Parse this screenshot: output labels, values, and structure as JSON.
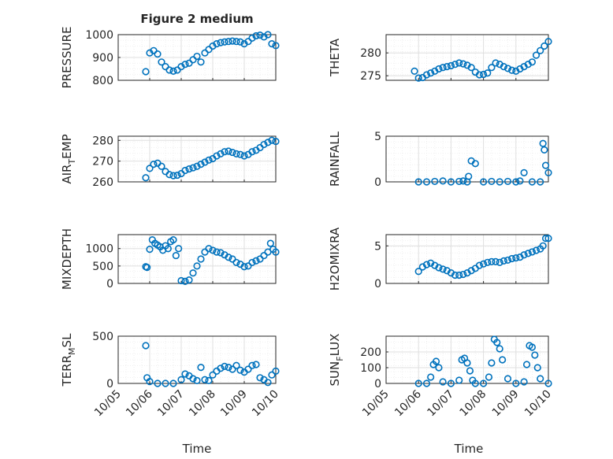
{
  "figure": {
    "title": "Figure 2 medium",
    "xlabel": "Time",
    "marker_color": "#0072BD"
  },
  "chart_data": [
    {
      "type": "scatter",
      "ylabel": "PRESSURE",
      "title": "Figure 2 medium",
      "xlim": [
        "10/05",
        "10/10"
      ],
      "ylim": [
        800,
        1000
      ],
      "yticks": [
        "800",
        "900",
        "1000"
      ],
      "xticks": [
        "10/05",
        "10/06",
        "10/07",
        "10/08",
        "10/09",
        "10/10"
      ],
      "x": [
        "10/05 21:00",
        "10/06 00:00",
        "10/06 03:00",
        "10/06 06:00",
        "10/06 09:00",
        "10/06 12:00",
        "10/06 15:00",
        "10/06 18:00",
        "10/06 21:00",
        "10/07 00:00",
        "10/07 03:00",
        "10/07 06:00",
        "10/07 09:00",
        "10/07 12:00",
        "10/07 15:00",
        "10/07 18:00",
        "10/07 21:00",
        "10/08 00:00",
        "10/08 03:00",
        "10/08 06:00",
        "10/08 09:00",
        "10/08 12:00",
        "10/08 15:00",
        "10/08 18:00",
        "10/08 21:00",
        "10/09 00:00",
        "10/09 03:00",
        "10/09 06:00",
        "10/09 09:00",
        "10/09 12:00",
        "10/09 15:00",
        "10/09 18:00",
        "10/09 21:00",
        "10/10 00:00"
      ],
      "y": [
        838,
        920,
        930,
        915,
        880,
        860,
        845,
        840,
        845,
        860,
        870,
        875,
        890,
        905,
        880,
        920,
        935,
        950,
        960,
        965,
        968,
        970,
        972,
        970,
        968,
        960,
        970,
        985,
        995,
        998,
        990,
        1000,
        960,
        952
      ]
    },
    {
      "type": "scatter",
      "ylabel": "THETA",
      "xlim": [
        "10/05",
        "10/10"
      ],
      "ylim": [
        274,
        284
      ],
      "yticks": [
        "275",
        "280"
      ],
      "x": [
        "10/05 21:00",
        "10/06 00:00",
        "10/06 03:00",
        "10/06 06:00",
        "10/06 09:00",
        "10/06 12:00",
        "10/06 15:00",
        "10/06 18:00",
        "10/06 21:00",
        "10/07 00:00",
        "10/07 03:00",
        "10/07 06:00",
        "10/07 09:00",
        "10/07 12:00",
        "10/07 15:00",
        "10/07 18:00",
        "10/07 21:00",
        "10/08 00:00",
        "10/08 03:00",
        "10/08 06:00",
        "10/08 09:00",
        "10/08 12:00",
        "10/08 15:00",
        "10/08 18:00",
        "10/08 21:00",
        "10/09 00:00",
        "10/09 03:00",
        "10/09 06:00",
        "10/09 09:00",
        "10/09 12:00",
        "10/09 15:00",
        "10/09 18:00",
        "10/09 21:00",
        "10/10 00:00"
      ],
      "y": [
        276,
        274.5,
        274.6,
        275.2,
        275.6,
        276,
        276.5,
        276.8,
        277,
        277.2,
        277.5,
        277.8,
        277.6,
        277.3,
        276.8,
        275.8,
        275.2,
        275.3,
        275.6,
        276.8,
        277.8,
        277.5,
        277,
        276.6,
        276.2,
        276,
        276.5,
        277,
        277.5,
        278,
        279.5,
        280.5,
        281.5,
        282.5
      ]
    },
    {
      "type": "scatter",
      "ylabel": "AIR_TEMP",
      "xlim": [
        "10/05",
        "10/10"
      ],
      "ylim": [
        260,
        282
      ],
      "yticks": [
        "260",
        "270",
        "280"
      ],
      "x": [
        "10/05 21:00",
        "10/06 00:00",
        "10/06 03:00",
        "10/06 06:00",
        "10/06 09:00",
        "10/06 12:00",
        "10/06 15:00",
        "10/06 18:00",
        "10/06 21:00",
        "10/07 00:00",
        "10/07 03:00",
        "10/07 06:00",
        "10/07 09:00",
        "10/07 12:00",
        "10/07 15:00",
        "10/07 18:00",
        "10/07 21:00",
        "10/08 00:00",
        "10/08 03:00",
        "10/08 06:00",
        "10/08 09:00",
        "10/08 12:00",
        "10/08 15:00",
        "10/08 18:00",
        "10/08 21:00",
        "10/09 00:00",
        "10/09 03:00",
        "10/09 06:00",
        "10/09 09:00",
        "10/09 12:00",
        "10/09 15:00",
        "10/09 18:00",
        "10/09 21:00",
        "10/10 00:00"
      ],
      "y": [
        262,
        266.5,
        268.5,
        269,
        267.5,
        265,
        263.5,
        263,
        263.2,
        264,
        265.5,
        266.2,
        266.8,
        267.5,
        268.5,
        269.5,
        270.5,
        271.2,
        272.5,
        273.5,
        274.5,
        274.8,
        274.2,
        273.5,
        273.2,
        272.5,
        273.2,
        274.5,
        275.2,
        276.5,
        278,
        279,
        280,
        279.5
      ]
    },
    {
      "type": "scatter",
      "ylabel": "RAINFALL",
      "xlim": [
        "10/05",
        "10/10"
      ],
      "ylim": [
        0,
        5
      ],
      "yticks": [
        "0",
        "5"
      ],
      "x": [
        "10/06 00:00",
        "10/06 06:00",
        "10/06 12:00",
        "10/06 18:00",
        "10/07 00:00",
        "10/07 06:00",
        "10/07 09:00",
        "10/07 12:00",
        "10/07 13:00",
        "10/07 15:00",
        "10/07 18:00",
        "10/08 00:00",
        "10/08 06:00",
        "10/08 12:00",
        "10/08 18:00",
        "10/09 00:00",
        "10/09 03:00",
        "10/09 06:00",
        "10/09 12:00",
        "10/09 18:00",
        "10/09 20:00",
        "10/09 21:00",
        "10/09 22:00",
        "10/10 00:00"
      ],
      "y": [
        0,
        0,
        0.05,
        0.1,
        0,
        0.05,
        0.1,
        0,
        0.6,
        2.3,
        2,
        0,
        0.05,
        0,
        0.05,
        0,
        0.1,
        1.0,
        0,
        0,
        4.2,
        3.5,
        1.8,
        1.0
      ]
    },
    {
      "type": "scatter",
      "ylabel": "MIXDEPTH",
      "xlim": [
        "10/05",
        "10/10"
      ],
      "ylim": [
        0,
        1400
      ],
      "yticks": [
        "0",
        "500",
        "1000"
      ],
      "x": [
        "10/05 21:00",
        "10/05 22:00",
        "10/06 00:00",
        "10/06 02:00",
        "10/06 04:00",
        "10/06 06:00",
        "10/06 08:00",
        "10/06 10:00",
        "10/06 12:00",
        "10/06 14:00",
        "10/06 16:00",
        "10/06 18:00",
        "10/06 20:00",
        "10/06 22:00",
        "10/07 00:00",
        "10/07 03:00",
        "10/07 06:00",
        "10/07 09:00",
        "10/07 12:00",
        "10/07 15:00",
        "10/07 18:00",
        "10/07 21:00",
        "10/08 00:00",
        "10/08 03:00",
        "10/08 06:00",
        "10/08 09:00",
        "10/08 12:00",
        "10/08 15:00",
        "10/08 18:00",
        "10/08 21:00",
        "10/09 00:00",
        "10/09 03:00",
        "10/09 06:00",
        "10/09 09:00",
        "10/09 12:00",
        "10/09 15:00",
        "10/09 18:00",
        "10/09 20:00",
        "10/09 22:00",
        "10/10 00:00"
      ],
      "y": [
        480,
        460,
        980,
        1250,
        1150,
        1100,
        1050,
        950,
        1080,
        1000,
        1200,
        1250,
        800,
        1000,
        80,
        60,
        100,
        300,
        500,
        700,
        900,
        1000,
        950,
        900,
        880,
        820,
        750,
        700,
        600,
        550,
        480,
        500,
        600,
        650,
        700,
        800,
        900,
        1150,
        980,
        900
      ]
    },
    {
      "type": "scatter",
      "ylabel": "H2OMIXRA",
      "xlim": [
        "10/05",
        "10/10"
      ],
      "ylim": [
        0,
        6.5
      ],
      "yticks": [
        "0",
        "5"
      ],
      "x": [
        "10/06 00:00",
        "10/06 03:00",
        "10/06 06:00",
        "10/06 09:00",
        "10/06 12:00",
        "10/06 15:00",
        "10/06 18:00",
        "10/06 21:00",
        "10/07 00:00",
        "10/07 03:00",
        "10/07 06:00",
        "10/07 09:00",
        "10/07 12:00",
        "10/07 15:00",
        "10/07 18:00",
        "10/07 21:00",
        "10/08 00:00",
        "10/08 03:00",
        "10/08 06:00",
        "10/08 09:00",
        "10/08 12:00",
        "10/08 15:00",
        "10/08 18:00",
        "10/08 21:00",
        "10/09 00:00",
        "10/09 03:00",
        "10/09 06:00",
        "10/09 09:00",
        "10/09 12:00",
        "10/09 15:00",
        "10/09 18:00",
        "10/09 20:00",
        "10/09 22:00",
        "10/10 00:00"
      ],
      "y": [
        1.6,
        2.2,
        2.5,
        2.7,
        2.4,
        2.1,
        1.9,
        1.7,
        1.4,
        1.1,
        1.1,
        1.2,
        1.4,
        1.7,
        2.0,
        2.4,
        2.6,
        2.8,
        2.9,
        2.9,
        2.8,
        3.0,
        3.1,
        3.3,
        3.4,
        3.5,
        3.8,
        4.0,
        4.2,
        4.4,
        4.6,
        5.0,
        6.0,
        6.0
      ]
    },
    {
      "type": "scatter",
      "ylabel": "TERR_MSL",
      "xlim": [
        "10/05",
        "10/10"
      ],
      "ylim": [
        0,
        500
      ],
      "yticks": [
        "0",
        "500"
      ],
      "x": [
        "10/05 21:00",
        "10/05 22:00",
        "10/06 00:00",
        "10/06 06:00",
        "10/06 12:00",
        "10/06 18:00",
        "10/07 00:00",
        "10/07 03:00",
        "10/07 06:00",
        "10/07 09:00",
        "10/07 12:00",
        "10/07 15:00",
        "10/07 18:00",
        "10/07 21:00",
        "10/08 00:00",
        "10/08 03:00",
        "10/08 06:00",
        "10/08 09:00",
        "10/08 12:00",
        "10/08 15:00",
        "10/08 18:00",
        "10/08 21:00",
        "10/09 00:00",
        "10/09 03:00",
        "10/09 06:00",
        "10/09 09:00",
        "10/09 12:00",
        "10/09 15:00",
        "10/09 18:00",
        "10/09 21:00",
        "10/10 00:00"
      ],
      "y": [
        400,
        60,
        20,
        0,
        0,
        0,
        40,
        100,
        80,
        50,
        30,
        170,
        40,
        30,
        90,
        130,
        160,
        180,
        170,
        150,
        190,
        140,
        120,
        150,
        190,
        200,
        60,
        40,
        10,
        90,
        130
      ]
    },
    {
      "type": "scatter",
      "ylabel": "SUN_FLUX",
      "xlim": [
        "10/05",
        "10/10"
      ],
      "ylim": [
        0,
        300
      ],
      "yticks": [
        "0",
        "100",
        "200"
      ],
      "x": [
        "10/06 00:00",
        "10/06 06:00",
        "10/06 09:00",
        "10/06 11:00",
        "10/06 13:00",
        "10/06 15:00",
        "10/06 18:00",
        "10/07 00:00",
        "10/07 06:00",
        "10/07 08:00",
        "10/07 10:00",
        "10/07 12:00",
        "10/07 14:00",
        "10/07 16:00",
        "10/07 18:00",
        "10/08 00:00",
        "10/08 04:00",
        "10/08 06:00",
        "10/08 08:00",
        "10/08 10:00",
        "10/08 12:00",
        "10/08 14:00",
        "10/08 18:00",
        "10/09 00:00",
        "10/09 06:00",
        "10/09 08:00",
        "10/09 10:00",
        "10/09 12:00",
        "10/09 14:00",
        "10/09 16:00",
        "10/09 18:00",
        "10/10 00:00"
      ],
      "y": [
        0,
        0,
        40,
        120,
        140,
        100,
        10,
        0,
        20,
        150,
        160,
        130,
        80,
        20,
        0,
        0,
        40,
        130,
        280,
        260,
        220,
        150,
        30,
        0,
        10,
        120,
        240,
        230,
        180,
        100,
        30,
        0
      ]
    }
  ]
}
